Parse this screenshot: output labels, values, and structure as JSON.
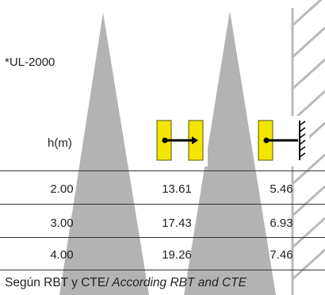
{
  "model": "*UL-2000",
  "table": {
    "header": "h(m)",
    "columns": [
      {
        "icon": "post-between-two-fixtures-icon"
      },
      {
        "icon": "fixture-wall-mounted-icon"
      }
    ],
    "rows": [
      {
        "h": "2.00",
        "between": "13.61",
        "wall": "5.46"
      },
      {
        "h": "3.00",
        "between": "17.43",
        "wall": "6.93"
      },
      {
        "h": "4.00",
        "between": "19.26",
        "wall": "7.46"
      }
    ]
  },
  "caption": {
    "regular": "Según RBT y CTE/",
    "italic": " According RBT and CTE"
  },
  "colors": {
    "beam": "#b3b3b3",
    "wall": "#b9b9b9",
    "fixture": "#f2e600",
    "rule": "#333333"
  }
}
